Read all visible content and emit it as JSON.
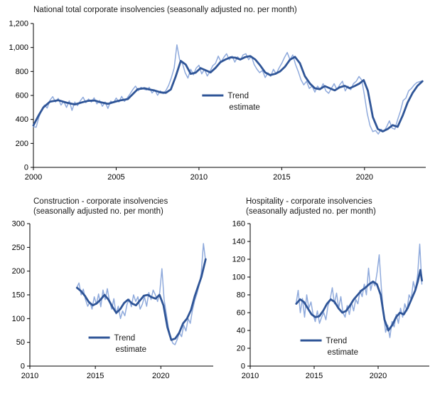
{
  "colors": {
    "seasonally_adjusted_line": "#8FAADC",
    "trend_line": "#2F5597",
    "axis": "#000000",
    "text": "#1a1a1a"
  },
  "chart_data": [
    {
      "type": "line",
      "title": "National total corporate insolvencies (seasonally adjusted no. per month)",
      "xlim": [
        2000,
        2023.7
      ],
      "ylim": [
        0,
        1200
      ],
      "xticks": [
        2000,
        2005,
        2010,
        2015,
        2020
      ],
      "xtick_labels": [
        "2000",
        "2005",
        "2010",
        "2015",
        "2020"
      ],
      "yticks": [
        0,
        200,
        400,
        600,
        800,
        1000,
        1200
      ],
      "ytick_labels": [
        "0",
        "200",
        "400",
        "600",
        "800",
        "1,000",
        "1,200"
      ],
      "grid": false,
      "legend": {
        "label_line1": "Trend",
        "label_line2": "estimate",
        "fx": 0.43,
        "fy": 0.5
      },
      "series": [
        {
          "name": "seasonally-adjusted",
          "color": "#8FAADC",
          "width": 1.5,
          "x_start": 2000.0,
          "x_step": 0.16667,
          "values": [
            340,
            335,
            420,
            480,
            520,
            495,
            560,
            590,
            545,
            575,
            520,
            550,
            500,
            555,
            475,
            545,
            515,
            555,
            585,
            540,
            570,
            545,
            580,
            530,
            558,
            510,
            545,
            492,
            552,
            540,
            578,
            545,
            592,
            550,
            580,
            612,
            648,
            678,
            640,
            668,
            652,
            645,
            668,
            620,
            645,
            602,
            638,
            615,
            640,
            683,
            748,
            828,
            1022,
            898,
            868,
            790,
            745,
            818,
            772,
            828,
            852,
            780,
            818,
            762,
            800,
            848,
            868,
            928,
            878,
            918,
            948,
            898,
            928,
            878,
            922,
            895,
            938,
            948,
            898,
            928,
            858,
            820,
            790,
            808,
            750,
            788,
            760,
            818,
            778,
            828,
            868,
            918,
            958,
            898,
            938,
            858,
            798,
            730,
            688,
            718,
            658,
            678,
            628,
            678,
            648,
            698,
            638,
            618,
            658,
            698,
            648,
            688,
            718,
            638,
            678,
            648,
            698,
            718,
            758,
            728,
            598,
            448,
            348,
            298,
            308,
            278,
            318,
            298,
            338,
            388,
            328,
            318,
            398,
            468,
            558,
            578,
            638,
            658,
            688,
            708,
            715,
            722
          ]
        },
        {
          "name": "trend-estimate",
          "color": "#2F5597",
          "width": 2.8,
          "x": [
            2000.0,
            2000.3,
            2000.6,
            2001.0,
            2001.5,
            2002.0,
            2002.5,
            2003.0,
            2003.3,
            2003.7,
            2004.0,
            2004.5,
            2005.0,
            2005.3,
            2005.7,
            2006.0,
            2006.3,
            2006.7,
            2007.0,
            2007.3,
            2007.7,
            2008.0,
            2008.3,
            2008.6,
            2008.9,
            2009.2,
            2009.5,
            2009.8,
            2010.1,
            2010.4,
            2010.7,
            2011.0,
            2011.3,
            2011.6,
            2011.9,
            2012.2,
            2012.5,
            2012.8,
            2013.1,
            2013.4,
            2013.7,
            2014.0,
            2014.3,
            2014.6,
            2014.9,
            2015.2,
            2015.5,
            2015.8,
            2016.1,
            2016.4,
            2016.7,
            2017.0,
            2017.3,
            2017.6,
            2017.9,
            2018.2,
            2018.5,
            2018.8,
            2019.1,
            2019.4,
            2019.7,
            2019.95,
            2020.2,
            2020.5,
            2020.8,
            2021.1,
            2021.4,
            2021.7,
            2022.0,
            2022.3,
            2022.6,
            2022.9,
            2023.2,
            2023.5
          ],
          "y": [
            350,
            430,
            500,
            548,
            560,
            540,
            525,
            545,
            555,
            558,
            545,
            530,
            550,
            560,
            570,
            610,
            652,
            660,
            650,
            642,
            625,
            622,
            650,
            760,
            888,
            858,
            780,
            790,
            828,
            810,
            792,
            830,
            878,
            900,
            918,
            915,
            900,
            920,
            928,
            900,
            850,
            792,
            770,
            780,
            800,
            840,
            898,
            922,
            868,
            760,
            700,
            660,
            652,
            678,
            660,
            642,
            668,
            680,
            660,
            678,
            700,
            728,
            640,
            420,
            320,
            300,
            320,
            352,
            338,
            430,
            540,
            620,
            680,
            718
          ]
        }
      ]
    },
    {
      "type": "line",
      "title_line1": "Construction - corporate insolvencies",
      "title_line2": "(seasonally adjusted no. per month)",
      "xlim": [
        2010,
        2024
      ],
      "ylim": [
        0,
        300
      ],
      "xticks": [
        2010,
        2015,
        2020
      ],
      "xtick_labels": [
        "2010",
        "2015",
        "2020"
      ],
      "yticks": [
        0,
        50,
        100,
        150,
        200,
        250,
        300
      ],
      "ytick_labels": [
        "0",
        "50",
        "100",
        "150",
        "200",
        "250",
        "300"
      ],
      "grid": false,
      "legend": {
        "label_line1": "Trend",
        "label_line2": "estimate",
        "fx": 0.32,
        "fy": 0.8
      },
      "series": [
        {
          "name": "seasonally-adjusted",
          "color": "#8FAADC",
          "width": 1.5,
          "x_start": 2013.583,
          "x_step": 0.16667,
          "values": [
            165,
            175,
            150,
            162,
            140,
            126,
            135,
            120,
            146,
            130,
            152,
            125,
            160,
            140,
            163,
            136,
            120,
            142,
            110,
            126,
            100,
            116,
            106,
            130,
            141,
            125,
            150,
            136,
            146,
            120,
            130,
            146,
            126,
            155,
            140,
            160,
            150,
            136,
            155,
            205,
            140,
            110,
            80,
            60,
            48,
            45,
            56,
            70,
            62,
            86,
            74,
            100,
            90,
            118,
            138,
            152,
            170,
            196,
            258,
            222
          ]
        },
        {
          "name": "trend-estimate",
          "color": "#2F5597",
          "width": 2.8,
          "x": [
            2013.6,
            2013.9,
            2014.2,
            2014.5,
            2014.8,
            2015.1,
            2015.4,
            2015.7,
            2016.0,
            2016.3,
            2016.6,
            2016.9,
            2017.2,
            2017.5,
            2017.8,
            2018.1,
            2018.4,
            2018.7,
            2019.0,
            2019.3,
            2019.6,
            2019.9,
            2020.2,
            2020.5,
            2020.8,
            2021.1,
            2021.4,
            2021.7,
            2022.0,
            2022.3,
            2022.6,
            2022.9,
            2023.1,
            2023.42
          ],
          "y": [
            165,
            158,
            148,
            135,
            128,
            132,
            140,
            150,
            140,
            125,
            112,
            120,
            133,
            140,
            132,
            128,
            138,
            148,
            150,
            145,
            142,
            150,
            128,
            82,
            55,
            58,
            70,
            90,
            100,
            118,
            148,
            172,
            188,
            225
          ]
        }
      ]
    },
    {
      "type": "line",
      "title_line1": "Hospitality - corporate insolvencies",
      "title_line2": "(seasonally adjusted no. per month)",
      "xlim": [
        2010,
        2024
      ],
      "ylim": [
        0,
        160
      ],
      "xticks": [
        2010,
        2015,
        2020
      ],
      "xtick_labels": [
        "2010",
        "2015",
        "2020"
      ],
      "yticks": [
        0,
        20,
        40,
        60,
        80,
        100,
        120,
        140,
        160
      ],
      "ytick_labels": [
        "0",
        "20",
        "40",
        "60",
        "80",
        "100",
        "120",
        "140",
        "160"
      ],
      "grid": false,
      "legend": {
        "label_line1": "Trend",
        "label_line2": "estimate",
        "fx": 0.28,
        "fy": 0.82
      },
      "series": [
        {
          "name": "seasonally-adjusted",
          "color": "#8FAADC",
          "width": 1.5,
          "x_start": 2013.583,
          "x_step": 0.16667,
          "values": [
            70,
            85,
            60,
            76,
            55,
            80,
            65,
            72,
            58,
            50,
            62,
            48,
            55,
            60,
            52,
            68,
            75,
            88,
            70,
            82,
            65,
            78,
            60,
            55,
            68,
            58,
            72,
            62,
            75,
            70,
            85,
            78,
            92,
            80,
            110,
            85,
            95,
            90,
            105,
            125,
            88,
            60,
            38,
            46,
            32,
            50,
            44,
            58,
            48,
            65,
            55,
            70,
            62,
            80,
            75,
            95,
            85,
            102,
            137,
            92
          ]
        },
        {
          "name": "trend-estimate",
          "color": "#2F5597",
          "width": 2.8,
          "x": [
            2013.6,
            2013.9,
            2014.2,
            2014.5,
            2014.8,
            2015.1,
            2015.4,
            2015.7,
            2016.0,
            2016.3,
            2016.6,
            2016.9,
            2017.2,
            2017.5,
            2017.8,
            2018.1,
            2018.4,
            2018.7,
            2019.0,
            2019.3,
            2019.6,
            2019.9,
            2020.2,
            2020.5,
            2020.8,
            2021.1,
            2021.4,
            2021.7,
            2022.0,
            2022.3,
            2022.6,
            2022.9,
            2023.1,
            2023.3,
            2023.42
          ],
          "y": [
            70,
            75,
            72,
            65,
            58,
            55,
            56,
            62,
            70,
            75,
            72,
            65,
            60,
            62,
            68,
            75,
            80,
            85,
            88,
            92,
            95,
            92,
            80,
            52,
            40,
            46,
            55,
            60,
            58,
            65,
            75,
            85,
            95,
            108,
            96
          ]
        }
      ]
    }
  ]
}
